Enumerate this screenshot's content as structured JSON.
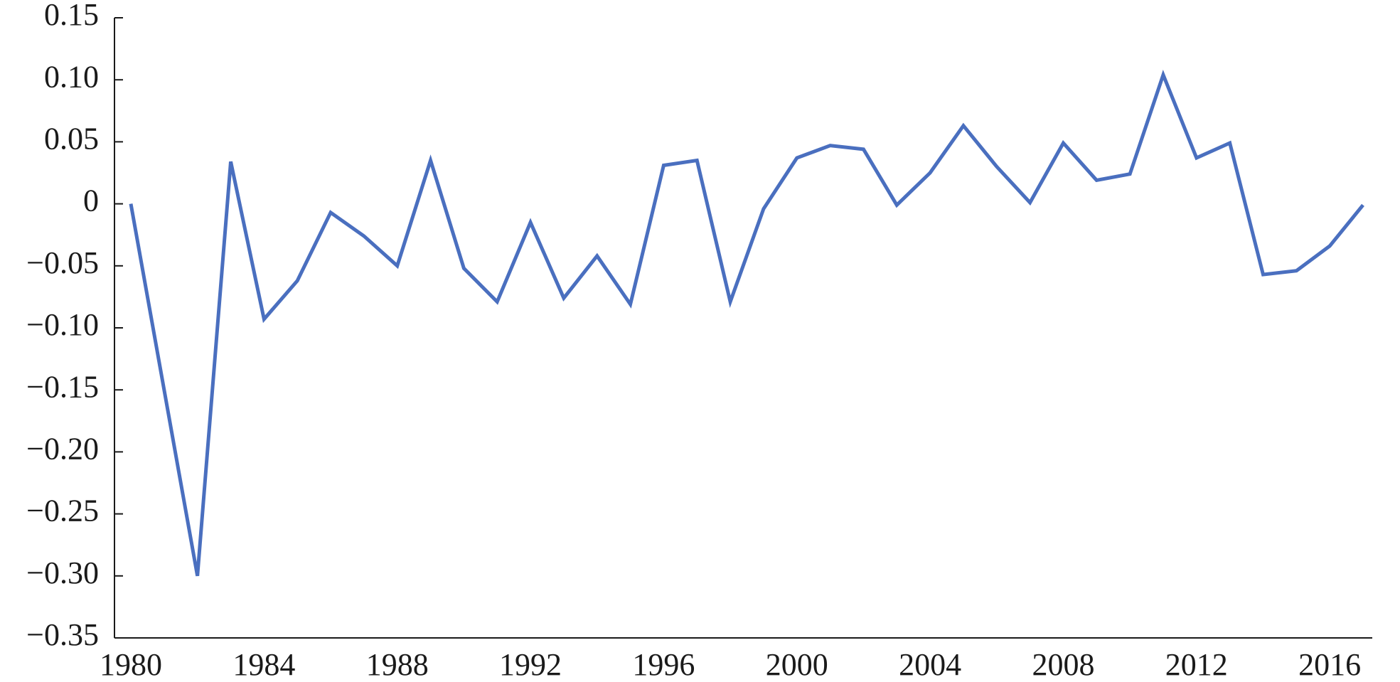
{
  "chart_data": {
    "type": "line",
    "x": [
      1980,
      1981,
      1982,
      1983,
      1984,
      1985,
      1986,
      1987,
      1988,
      1989,
      1990,
      1991,
      1992,
      1993,
      1994,
      1995,
      1996,
      1997,
      1998,
      1999,
      2000,
      2001,
      2002,
      2003,
      2004,
      2005,
      2006,
      2007,
      2008,
      2009,
      2010,
      2011,
      2012,
      2013,
      2014,
      2015,
      2016,
      2017
    ],
    "series": [
      {
        "color": "#4a6fbf",
        "values": [
          0,
          -0.15,
          -0.3,
          0.034,
          -0.093,
          -0.062,
          -0.007,
          -0.026,
          -0.05,
          0.035,
          -0.052,
          -0.079,
          -0.015,
          -0.076,
          -0.042,
          -0.081,
          0.031,
          0.035,
          -0.079,
          -0.004,
          0.037,
          0.047,
          0.044,
          -0.001,
          0.025,
          0.063,
          0.03,
          0.001,
          0.049,
          0.019,
          0.024,
          0.104,
          0.037,
          0.049,
          -0.057,
          -0.054,
          -0.034,
          -0.001
        ]
      }
    ],
    "xlim": [
      1980,
      2017
    ],
    "xticks": [
      1980,
      1984,
      1988,
      1992,
      1996,
      2000,
      2004,
      2008,
      2012,
      2016
    ],
    "ylim": [
      -0.35,
      0.15
    ],
    "yticks": [
      {
        "value": -0.35,
        "label": "−0.35"
      },
      {
        "value": -0.3,
        "label": "−0.30"
      },
      {
        "value": -0.25,
        "label": "−0.25"
      },
      {
        "value": -0.2,
        "label": "−0.20"
      },
      {
        "value": -0.15,
        "label": "−0.15"
      },
      {
        "value": -0.1,
        "label": "−0.10"
      },
      {
        "value": -0.05,
        "label": "−0.05"
      },
      0,
      0.05,
      {
        "value": 0.1,
        "label": "0.10"
      },
      0.15
    ],
    "grid": false
  }
}
